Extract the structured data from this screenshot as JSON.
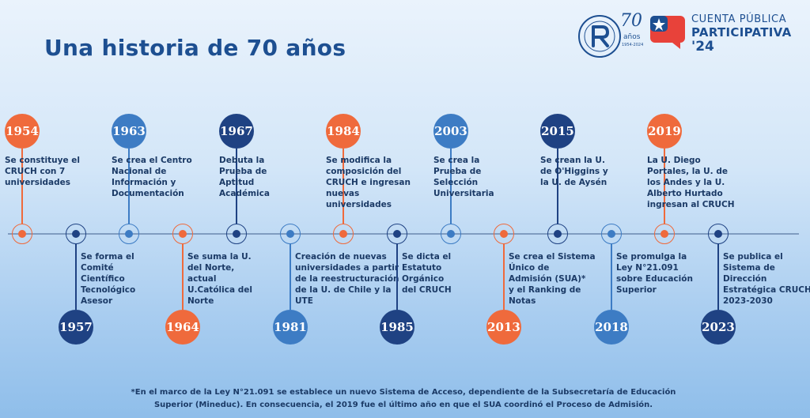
{
  "title": "Una historia de 70 años",
  "logos": {
    "cruch_number": "70",
    "cruch_years_label": "años",
    "cruch_years_range": "1954-2024",
    "cuenta_line1": "CUENTA PÚBLICA",
    "cuenta_line2": "PARTICIPATIVA",
    "cuenta_line3": "'24"
  },
  "colors": {
    "orange": "#ef6a3c",
    "navy": "#1f4283",
    "mid_blue": "#3d7cc4",
    "axis": "#7f9cc0"
  },
  "events": [
    {
      "year": "1954",
      "color": "orange",
      "pos": "top",
      "lines": [
        "Se constituye el",
        "CRUCH con 7",
        "universidades"
      ]
    },
    {
      "year": "1957",
      "color": "navy",
      "pos": "bottom",
      "lines": [
        "Se forma el",
        "Comité",
        "Científico",
        "Tecnológico",
        "Asesor"
      ]
    },
    {
      "year": "1963",
      "color": "mid_blue",
      "pos": "top",
      "lines": [
        "Se crea el Centro",
        "Nacional de",
        "Información y",
        "Documentación"
      ]
    },
    {
      "year": "1964",
      "color": "orange",
      "pos": "bottom",
      "lines": [
        "Se suma la U.",
        "del Norte,",
        "actual",
        "U.Católica del",
        "Norte"
      ]
    },
    {
      "year": "1967",
      "color": "navy",
      "pos": "top",
      "lines": [
        "Debuta la",
        "Prueba de",
        "Aptitud",
        "Académica"
      ]
    },
    {
      "year": "1981",
      "color": "mid_blue",
      "pos": "bottom",
      "lines": [
        "Creación de nuevas",
        "universidades a partir",
        "de la reestructuración",
        "de la U. de Chile y la",
        "UTE"
      ]
    },
    {
      "year": "1984",
      "color": "orange",
      "pos": "top",
      "lines": [
        "Se modifica la",
        "composición del",
        "CRUCH e ingresan",
        "nuevas",
        "universidades"
      ]
    },
    {
      "year": "1985",
      "color": "navy",
      "pos": "bottom",
      "lines": [
        "Se dicta el",
        "Estatuto",
        "Orgánico",
        "del CRUCH"
      ]
    },
    {
      "year": "2003",
      "color": "mid_blue",
      "pos": "top",
      "lines": [
        "Se crea la",
        "Prueba de",
        "Selección",
        "Universitaria"
      ]
    },
    {
      "year": "2013",
      "color": "orange",
      "pos": "bottom",
      "lines": [
        "Se crea el Sistema",
        "Único de",
        "Admisión (SUA)*",
        "y el Ranking de",
        "Notas"
      ]
    },
    {
      "year": "2015",
      "color": "navy",
      "pos": "top",
      "lines": [
        "Se crean la U.",
        "de O'Higgins y",
        "la U. de Aysén"
      ]
    },
    {
      "year": "2018",
      "color": "mid_blue",
      "pos": "bottom",
      "lines": [
        "Se promulga la",
        "Ley N°21.091",
        "sobre Educación",
        "Superior"
      ]
    },
    {
      "year": "2019",
      "color": "orange",
      "pos": "top",
      "lines": [
        "La U. Diego",
        "Portales, la U. de",
        "los Andes y la U.",
        "Alberto Hurtado",
        "ingresan al CRUCH"
      ]
    },
    {
      "year": "2023",
      "color": "navy",
      "pos": "bottom",
      "lines": [
        "Se publica el",
        "Sistema de",
        "Dirección",
        "Estratégica CRUCH",
        "2023-2030"
      ]
    }
  ],
  "footnote": {
    "line1": "*En el marco de la Ley N°21.091 se establece un nuevo Sistema de Acceso, dependiente de la Subsecretaría de Educación",
    "line2": "Superior (Mineduc). En consecuencia, el  2019 fue el último año en que el SUA coordinó el Proceso de Admisión."
  }
}
